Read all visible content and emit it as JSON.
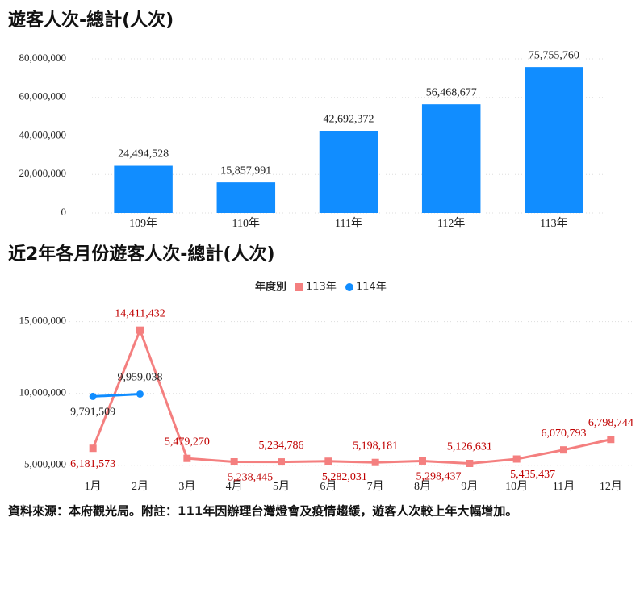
{
  "chart_data": [
    {
      "type": "bar",
      "title": "遊客人次-總計(人次)",
      "categories": [
        "109年",
        "110年",
        "111年",
        "112年",
        "113年"
      ],
      "values": [
        24494528,
        15857991,
        42692372,
        56468677,
        75755760
      ],
      "value_labels": [
        "24,494,528",
        "15,857,991",
        "42,692,372",
        "56,468,677",
        "75,755,760"
      ],
      "color": "#118dff",
      "ylim": [
        0,
        80000000
      ],
      "yticks": [
        0,
        {
          "value": 20000000,
          "label": "20,000,000"
        },
        {
          "value": 40000000,
          "label": "40,000,000"
        },
        {
          "value": 60000000,
          "label": "60,000,000"
        },
        {
          "value": 80000000,
          "label": "80,000,000"
        }
      ],
      "grid": true
    },
    {
      "type": "line",
      "title": "近2年各月份遊客人次-總計(人次)",
      "legend_title": "年度別",
      "categories": [
        "1月",
        "2月",
        "3月",
        "4月",
        "5月",
        "6月",
        "7月",
        "8月",
        "9月",
        "10月",
        "11月",
        "12月"
      ],
      "series": [
        {
          "name": "113年",
          "color": "#f47f7f",
          "marker": "square",
          "values": [
            6181573,
            14411432,
            5479270,
            5238445,
            5234786,
            5282031,
            5198181,
            5298437,
            5126631,
            5435437,
            6070793,
            6798744
          ],
          "value_labels": [
            "6,181,573",
            "14,411,432",
            "5,479,270",
            "5,238,445",
            "5,234,786",
            "5,282,031",
            "5,198,181",
            "5,298,437",
            "5,126,631",
            "5,435,437",
            "6,070,793",
            "6,798,744"
          ]
        },
        {
          "name": "114年",
          "color": "#118dff",
          "marker": "circle",
          "values": [
            9791509,
            9959038,
            null,
            null,
            null,
            null,
            null,
            null,
            null,
            null,
            null,
            null
          ],
          "value_labels": [
            "9,791,509",
            "9,959,038",
            null,
            null,
            null,
            null,
            null,
            null,
            null,
            null,
            null,
            null
          ]
        }
      ],
      "ylim": [
        4200000,
        15600000
      ],
      "yticks": [
        {
          "value": 5000000,
          "label": "5,000,000"
        },
        {
          "value": 10000000,
          "label": "10,000,000"
        },
        {
          "value": 15000000,
          "label": "15,000,000"
        }
      ],
      "grid": true
    }
  ],
  "footnote": "資料來源：本府觀光局。附註：111年因辦理台灣燈會及疫情趨緩，遊客人次較上年大幅增加。"
}
